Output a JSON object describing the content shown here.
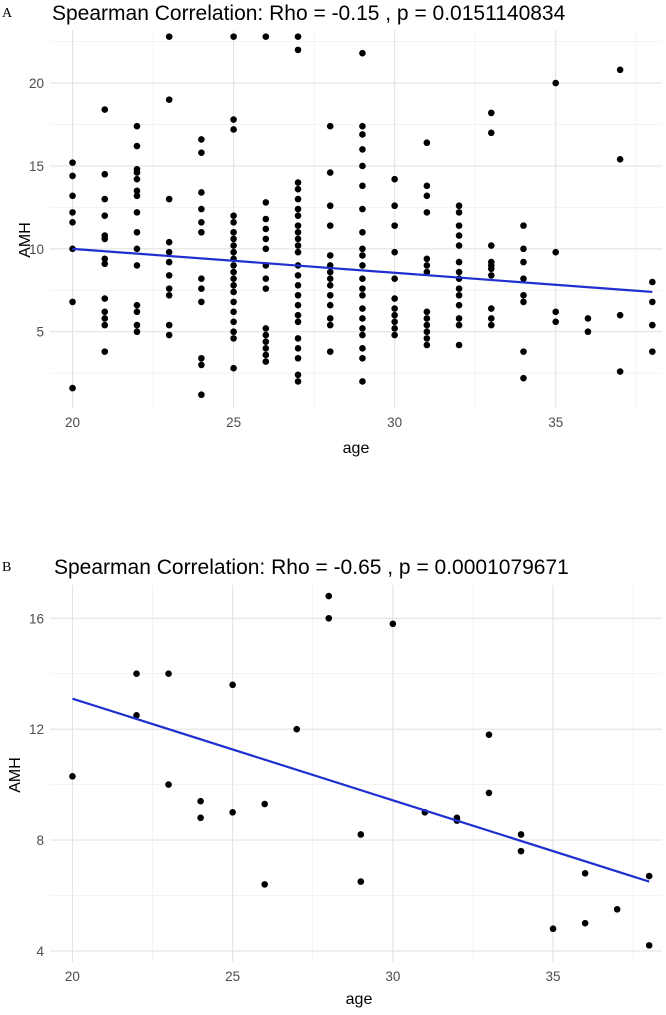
{
  "chart_data": [
    {
      "panel": "A",
      "type": "scatter",
      "title": "Spearman Correlation: Rho = -0.15 , p = 0.0151140834",
      "xlabel": "age",
      "ylabel": "AMH",
      "xlim": [
        19.3,
        38.3
      ],
      "ylim": [
        0.4,
        23.2
      ],
      "xticks": [
        20,
        25,
        30,
        35
      ],
      "yticks": [
        5,
        10,
        15,
        20
      ],
      "grid": true,
      "trend_line": {
        "x": [
          20,
          38
        ],
        "y": [
          10.0,
          7.4
        ]
      },
      "points": [
        [
          20,
          15.2
        ],
        [
          20,
          14.4
        ],
        [
          20,
          13.2
        ],
        [
          20,
          12.2
        ],
        [
          20,
          11.6
        ],
        [
          20,
          10.0
        ],
        [
          20,
          6.8
        ],
        [
          20,
          1.6
        ],
        [
          21,
          18.4
        ],
        [
          21,
          14.5
        ],
        [
          21,
          13.0
        ],
        [
          21,
          12.0
        ],
        [
          21,
          10.8
        ],
        [
          21,
          10.6
        ],
        [
          21,
          9.4
        ],
        [
          21,
          9.1
        ],
        [
          21,
          7.0
        ],
        [
          21,
          6.2
        ],
        [
          21,
          5.8
        ],
        [
          21,
          5.4
        ],
        [
          21,
          3.8
        ],
        [
          22,
          17.4
        ],
        [
          22,
          16.2
        ],
        [
          22,
          14.8
        ],
        [
          22,
          14.6
        ],
        [
          22,
          14.2
        ],
        [
          22,
          13.5
        ],
        [
          22,
          13.2
        ],
        [
          22,
          12.2
        ],
        [
          22,
          11.0
        ],
        [
          22,
          10.0
        ],
        [
          22,
          9.0
        ],
        [
          22,
          6.6
        ],
        [
          22,
          6.2
        ],
        [
          22,
          5.4
        ],
        [
          22,
          5.0
        ],
        [
          23,
          22.8
        ],
        [
          23,
          19.0
        ],
        [
          23,
          13.0
        ],
        [
          23,
          10.4
        ],
        [
          23,
          9.8
        ],
        [
          23,
          9.2
        ],
        [
          23,
          8.4
        ],
        [
          23,
          7.6
        ],
        [
          23,
          7.2
        ],
        [
          23,
          5.4
        ],
        [
          23,
          4.8
        ],
        [
          24,
          16.6
        ],
        [
          24,
          15.8
        ],
        [
          24,
          13.4
        ],
        [
          24,
          12.4
        ],
        [
          24,
          11.6
        ],
        [
          24,
          11.0
        ],
        [
          24,
          8.2
        ],
        [
          24,
          7.6
        ],
        [
          24,
          6.8
        ],
        [
          24,
          3.4
        ],
        [
          24,
          3.0
        ],
        [
          24,
          1.2
        ],
        [
          25,
          22.8
        ],
        [
          25,
          17.8
        ],
        [
          25,
          17.2
        ],
        [
          25,
          12.0
        ],
        [
          25,
          11.6
        ],
        [
          25,
          11.0
        ],
        [
          25,
          10.6
        ],
        [
          25,
          10.2
        ],
        [
          25,
          9.8
        ],
        [
          25,
          9.4
        ],
        [
          25,
          9.0
        ],
        [
          25,
          8.6
        ],
        [
          25,
          8.2
        ],
        [
          25,
          7.8
        ],
        [
          25,
          7.4
        ],
        [
          25,
          6.8
        ],
        [
          25,
          6.2
        ],
        [
          25,
          5.6
        ],
        [
          25,
          5.0
        ],
        [
          25,
          4.6
        ],
        [
          25,
          2.8
        ],
        [
          26,
          22.8
        ],
        [
          26,
          12.8
        ],
        [
          26,
          11.8
        ],
        [
          26,
          11.2
        ],
        [
          26,
          10.6
        ],
        [
          26,
          10.0
        ],
        [
          26,
          9.0
        ],
        [
          26,
          8.2
        ],
        [
          26,
          7.6
        ],
        [
          26,
          5.2
        ],
        [
          26,
          4.8
        ],
        [
          26,
          4.4
        ],
        [
          26,
          4.0
        ],
        [
          26,
          3.6
        ],
        [
          26,
          3.2
        ],
        [
          27,
          22.8
        ],
        [
          27,
          22.0
        ],
        [
          27,
          14.0
        ],
        [
          27,
          13.6
        ],
        [
          27,
          13.0
        ],
        [
          27,
          12.4
        ],
        [
          27,
          12.0
        ],
        [
          27,
          11.4
        ],
        [
          27,
          11.0
        ],
        [
          27,
          10.6
        ],
        [
          27,
          10.2
        ],
        [
          27,
          9.8
        ],
        [
          27,
          9.0
        ],
        [
          27,
          8.4
        ],
        [
          27,
          7.8
        ],
        [
          27,
          7.2
        ],
        [
          27,
          6.6
        ],
        [
          27,
          6.0
        ],
        [
          27,
          5.6
        ],
        [
          27,
          4.6
        ],
        [
          27,
          4.0
        ],
        [
          27,
          3.4
        ],
        [
          27,
          2.4
        ],
        [
          27,
          2.0
        ],
        [
          28,
          17.4
        ],
        [
          28,
          14.6
        ],
        [
          28,
          12.6
        ],
        [
          28,
          11.4
        ],
        [
          28,
          9.6
        ],
        [
          28,
          9.0
        ],
        [
          28,
          8.6
        ],
        [
          28,
          8.2
        ],
        [
          28,
          7.8
        ],
        [
          28,
          7.2
        ],
        [
          28,
          6.6
        ],
        [
          28,
          5.8
        ],
        [
          28,
          5.4
        ],
        [
          28,
          3.8
        ],
        [
          29,
          21.8
        ],
        [
          29,
          17.4
        ],
        [
          29,
          16.9
        ],
        [
          29,
          16.0
        ],
        [
          29,
          15.0
        ],
        [
          29,
          13.8
        ],
        [
          29,
          12.4
        ],
        [
          29,
          11.0
        ],
        [
          29,
          10.0
        ],
        [
          29,
          9.6
        ],
        [
          29,
          9.0
        ],
        [
          29,
          8.2
        ],
        [
          29,
          7.6
        ],
        [
          29,
          7.2
        ],
        [
          29,
          6.4
        ],
        [
          29,
          5.8
        ],
        [
          29,
          5.2
        ],
        [
          29,
          4.8
        ],
        [
          29,
          4.0
        ],
        [
          29,
          3.4
        ],
        [
          29,
          2.0
        ],
        [
          30,
          14.2
        ],
        [
          30,
          12.6
        ],
        [
          30,
          11.4
        ],
        [
          30,
          9.8
        ],
        [
          30,
          8.2
        ],
        [
          30,
          7.0
        ],
        [
          30,
          6.4
        ],
        [
          30,
          6.0
        ],
        [
          30,
          5.6
        ],
        [
          30,
          5.2
        ],
        [
          30,
          4.8
        ],
        [
          31,
          16.4
        ],
        [
          31,
          13.8
        ],
        [
          31,
          13.2
        ],
        [
          31,
          12.2
        ],
        [
          31,
          9.4
        ],
        [
          31,
          9.0
        ],
        [
          31,
          8.6
        ],
        [
          31,
          6.2
        ],
        [
          31,
          5.8
        ],
        [
          31,
          5.4
        ],
        [
          31,
          5.0
        ],
        [
          31,
          4.6
        ],
        [
          31,
          4.2
        ],
        [
          32,
          12.6
        ],
        [
          32,
          12.2
        ],
        [
          32,
          11.4
        ],
        [
          32,
          10.8
        ],
        [
          32,
          10.2
        ],
        [
          32,
          9.2
        ],
        [
          32,
          8.6
        ],
        [
          32,
          8.2
        ],
        [
          32,
          7.6
        ],
        [
          32,
          7.2
        ],
        [
          32,
          6.6
        ],
        [
          32,
          5.8
        ],
        [
          32,
          5.4
        ],
        [
          32,
          4.2
        ],
        [
          33,
          18.2
        ],
        [
          33,
          17.0
        ],
        [
          33,
          10.2
        ],
        [
          33,
          9.2
        ],
        [
          33,
          9.0
        ],
        [
          33,
          8.8
        ],
        [
          33,
          8.4
        ],
        [
          33,
          6.4
        ],
        [
          33,
          5.8
        ],
        [
          33,
          5.4
        ],
        [
          34,
          11.4
        ],
        [
          34,
          10.0
        ],
        [
          34,
          9.2
        ],
        [
          34,
          8.2
        ],
        [
          34,
          7.2
        ],
        [
          34,
          6.8
        ],
        [
          34,
          3.8
        ],
        [
          34,
          2.2
        ],
        [
          35,
          20.0
        ],
        [
          35,
          9.8
        ],
        [
          35,
          6.2
        ],
        [
          35,
          5.6
        ],
        [
          36,
          5.8
        ],
        [
          36,
          5.0
        ],
        [
          37,
          20.8
        ],
        [
          37,
          15.4
        ],
        [
          37,
          6.0
        ],
        [
          37,
          2.6
        ],
        [
          38,
          8.0
        ],
        [
          38,
          6.8
        ],
        [
          38,
          5.4
        ],
        [
          38,
          3.8
        ]
      ]
    },
    {
      "panel": "B",
      "type": "scatter",
      "title": "Spearman Correlation: Rho = -0.65 , p = 0.0001079671",
      "xlabel": "age",
      "ylabel": "AMH",
      "xlim": [
        19.3,
        38.4
      ],
      "ylim": [
        3.6,
        17.2
      ],
      "xticks": [
        20,
        25,
        30,
        35
      ],
      "yticks": [
        4,
        8,
        12,
        16
      ],
      "grid": true,
      "trend_line": {
        "x": [
          20,
          38
        ],
        "y": [
          13.1,
          6.5
        ]
      },
      "points": [
        [
          20,
          10.3
        ],
        [
          22,
          14.0
        ],
        [
          22,
          12.5
        ],
        [
          23,
          14.0
        ],
        [
          23,
          10.0
        ],
        [
          24,
          9.4
        ],
        [
          24,
          8.8
        ],
        [
          25,
          13.6
        ],
        [
          25,
          9.0
        ],
        [
          26,
          9.3
        ],
        [
          26,
          6.4
        ],
        [
          27,
          12.0
        ],
        [
          28,
          16.8
        ],
        [
          28,
          16.0
        ],
        [
          29,
          8.2
        ],
        [
          29,
          6.5
        ],
        [
          30,
          15.8
        ],
        [
          31,
          9.0
        ],
        [
          32,
          8.8
        ],
        [
          32,
          8.7
        ],
        [
          33,
          11.8
        ],
        [
          33,
          9.7
        ],
        [
          34,
          8.2
        ],
        [
          34,
          7.6
        ],
        [
          35,
          4.8
        ],
        [
          36,
          6.8
        ],
        [
          36,
          5.0
        ],
        [
          37,
          5.5
        ],
        [
          38,
          6.7
        ],
        [
          38,
          4.2
        ]
      ]
    }
  ]
}
